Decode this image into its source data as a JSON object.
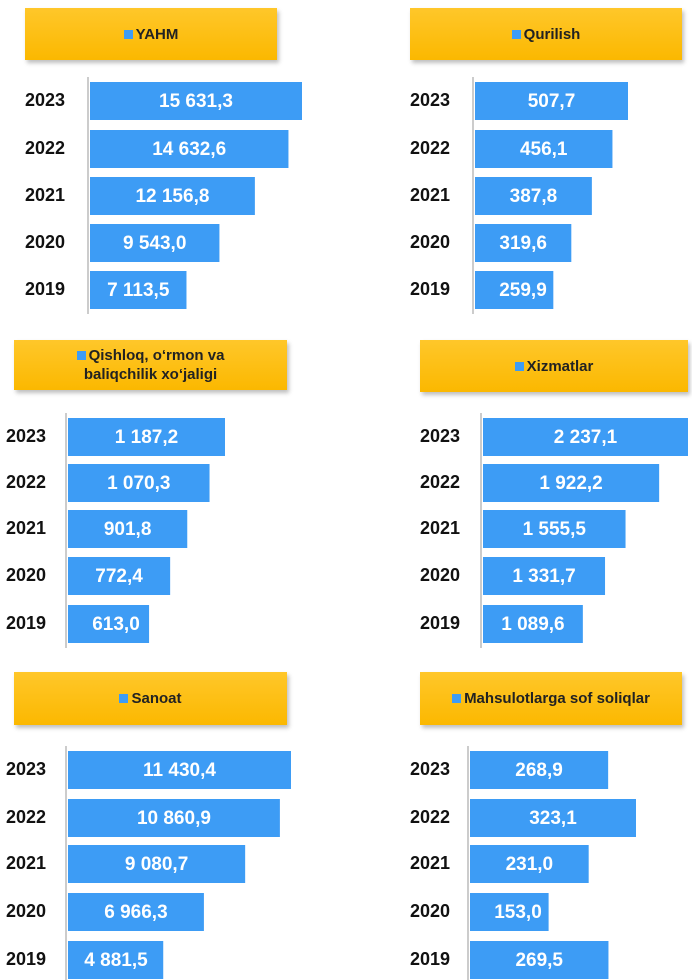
{
  "chart_data": [
    {
      "type": "bar",
      "title": "YAHM",
      "categories": [
        "2023",
        "2022",
        "2021",
        "2020",
        "2019"
      ],
      "values": [
        15631.3,
        14632.6,
        12156.8,
        9543.0,
        7113.5
      ],
      "value_labels": [
        "15 631,3",
        "14 632,6",
        "12 156,8",
        "9 543,0",
        "7 113,5"
      ],
      "color": "#3d9cf5"
    },
    {
      "type": "bar",
      "title": "Qurilish",
      "categories": [
        "2023",
        "2022",
        "2021",
        "2020",
        "2019"
      ],
      "values": [
        507.7,
        456.1,
        387.8,
        319.6,
        259.9
      ],
      "value_labels": [
        "507,7",
        "456,1",
        "387,8",
        "319,6",
        "259,9"
      ],
      "color": "#3d9cf5"
    },
    {
      "type": "bar",
      "title": "Qishloq, o‘rmon va baliqchilik xo‘jaligi",
      "categories": [
        "2023",
        "2022",
        "2021",
        "2020",
        "2019"
      ],
      "values": [
        1187.2,
        1070.3,
        901.8,
        772.4,
        613.0
      ],
      "value_labels": [
        "1 187,2",
        "1 070,3",
        "901,8",
        "772,4",
        "613,0"
      ],
      "color": "#3d9cf5"
    },
    {
      "type": "bar",
      "title": "Xizmatlar",
      "categories": [
        "2023",
        "2022",
        "2021",
        "2020",
        "2019"
      ],
      "values": [
        2237.1,
        1922.2,
        1555.5,
        1331.7,
        1089.6
      ],
      "value_labels": [
        "2 237,1",
        "1 922,2",
        "1 555,5",
        "1 331,7",
        "1 089,6"
      ],
      "color": "#3d9cf5"
    },
    {
      "type": "bar",
      "title": "Sanoat",
      "categories": [
        "2023",
        "2022",
        "2021",
        "2020",
        "2019"
      ],
      "values": [
        11430.4,
        10860.9,
        9080.7,
        6966.3,
        4881.5
      ],
      "value_labels": [
        "11 430,4",
        "10 860,9",
        "9 080,7",
        "6 966,3",
        "4 881,5"
      ],
      "color": "#3d9cf5"
    },
    {
      "type": "bar",
      "title": "Mahsulotlarga sof soliqlar",
      "categories": [
        "2023",
        "2022",
        "2021",
        "2020",
        "2019"
      ],
      "values": [
        268.9,
        323.1,
        231.0,
        153.0,
        269.5
      ],
      "value_labels": [
        "268,9",
        "323,1",
        "231,0",
        "153,0",
        "269,5"
      ],
      "color": "#3d9cf5"
    }
  ]
}
